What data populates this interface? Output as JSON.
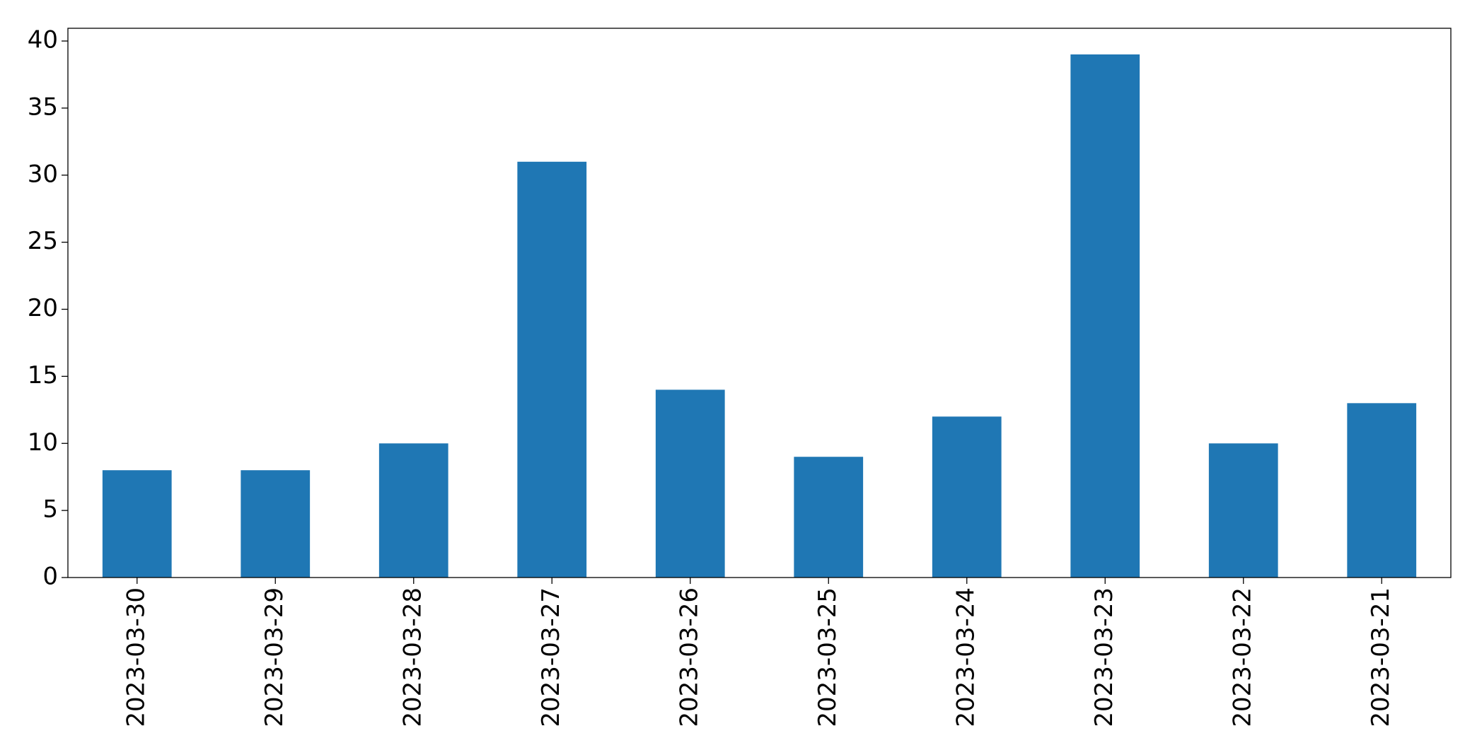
{
  "chart_data": {
    "type": "bar",
    "categories": [
      "2023-03-30",
      "2023-03-29",
      "2023-03-28",
      "2023-03-27",
      "2023-03-26",
      "2023-03-25",
      "2023-03-24",
      "2023-03-23",
      "2023-03-22",
      "2023-03-21"
    ],
    "values": [
      8,
      8,
      10,
      31,
      14,
      9,
      12,
      39,
      10,
      13
    ],
    "color": "#1f77b4",
    "ylim": [
      0,
      40.95
    ],
    "yticks": [
      0,
      5,
      10,
      15,
      20,
      25,
      30,
      35,
      40
    ],
    "grid": false
  }
}
